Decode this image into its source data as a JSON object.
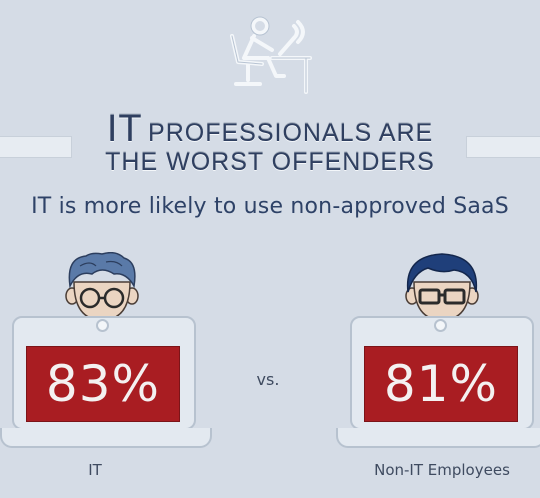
{
  "title": {
    "line1_big": "IT",
    "line1_small": "PROFESSIONALS ARE",
    "line2": "THE WORST OFFENDERS"
  },
  "subtitle": "IT is more likely to use non-approved SaaS",
  "comparison": {
    "left": {
      "value": "83%",
      "label": "IT"
    },
    "vs": "vs.",
    "right": {
      "value": "81%",
      "label": "Non-IT Employees"
    }
  },
  "icons": {
    "header": "person-at-desk-icon",
    "left_person": "person-with-glasses-icon",
    "right_person": "person-with-glasses-icon"
  },
  "colors": {
    "background": "#d5dce6",
    "accent_red": "#a91d22",
    "title_blue": "#2f3f60",
    "hair_light": "#5a7aa8",
    "hair_dark": "#1f3f7a"
  }
}
